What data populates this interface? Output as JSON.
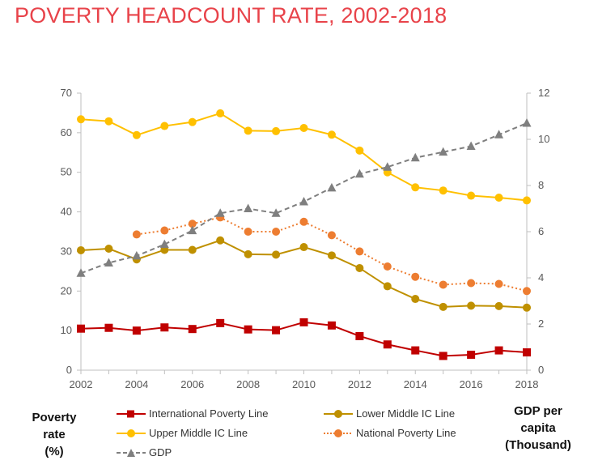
{
  "header": {
    "title": "POVERTY HEADCOUNT RATE, 2002-2018"
  },
  "labels": {
    "left_axis": [
      "Poverty",
      "rate",
      "(%)"
    ],
    "right_axis": [
      "GDP per",
      "capita",
      "(Thousand)"
    ]
  },
  "colors": {
    "title": "#e8434a",
    "international": "#c00000",
    "lower_middle": "#bf9000",
    "upper_middle": "#ffc000",
    "national": "#ed7d31",
    "gdp": "#7f7f7f"
  },
  "chart_data": {
    "type": "line",
    "title": "POVERTY HEADCOUNT RATE, 2002-2018",
    "x": [
      2002,
      2003,
      2004,
      2005,
      2006,
      2007,
      2008,
      2009,
      2010,
      2011,
      2012,
      2013,
      2014,
      2015,
      2016,
      2017,
      2018
    ],
    "x_ticks": [
      "2002",
      "2004",
      "2006",
      "2008",
      "2010",
      "2012",
      "2014",
      "2016",
      "2018"
    ],
    "xlim": [
      2002,
      2018
    ],
    "ylabel": "Poverty rate (%)",
    "ylim": [
      0,
      70
    ],
    "y_ticks": [
      "0",
      "10",
      "20",
      "30",
      "40",
      "50",
      "60",
      "70"
    ],
    "y2label": "GDP per capita (Thousand)",
    "y2lim": [
      0,
      12
    ],
    "y2_ticks": [
      "0",
      "2",
      "4",
      "6",
      "8",
      "10",
      "12"
    ],
    "grid": false,
    "legend_position": "bottom",
    "series": [
      {
        "name": "International Poverty Line",
        "axis": "left",
        "style": "solid",
        "marker": "square",
        "color": "#c00000",
        "values": [
          10.5,
          10.7,
          10.0,
          10.8,
          10.4,
          11.9,
          10.3,
          10.1,
          12.1,
          11.3,
          8.6,
          6.5,
          5.0,
          3.6,
          3.9,
          5.0,
          4.5
        ]
      },
      {
        "name": "Lower Middle IC Line",
        "axis": "left",
        "style": "solid",
        "marker": "circle",
        "color": "#bf9000",
        "values": [
          30.3,
          30.7,
          28.0,
          30.4,
          30.4,
          32.8,
          29.3,
          29.2,
          31.1,
          29.0,
          25.8,
          21.2,
          18.0,
          16.0,
          16.3,
          16.2,
          15.8
        ]
      },
      {
        "name": "Upper Middle IC Line",
        "axis": "left",
        "style": "solid",
        "marker": "circle",
        "color": "#ffc000",
        "values": [
          63.4,
          62.9,
          59.4,
          61.7,
          62.7,
          64.9,
          60.5,
          60.4,
          61.2,
          59.5,
          55.5,
          50.0,
          46.2,
          45.4,
          44.1,
          43.6,
          42.9
        ]
      },
      {
        "name": "National Poverty Line",
        "axis": "left",
        "style": "dotted",
        "marker": "circle",
        "color": "#ed7d31",
        "values": [
          null,
          null,
          34.3,
          35.3,
          37.0,
          38.6,
          35.0,
          35.0,
          37.5,
          34.1,
          30.0,
          26.2,
          23.6,
          21.6,
          22.0,
          21.8,
          20.0
        ]
      },
      {
        "name": "GDP",
        "axis": "right",
        "style": "dashed",
        "marker": "triangle",
        "color": "#7f7f7f",
        "values": [
          4.2,
          4.65,
          4.95,
          5.45,
          6.05,
          6.8,
          7.0,
          6.8,
          7.3,
          7.9,
          8.5,
          8.8,
          9.2,
          9.45,
          9.7,
          10.2,
          10.7
        ]
      }
    ]
  }
}
